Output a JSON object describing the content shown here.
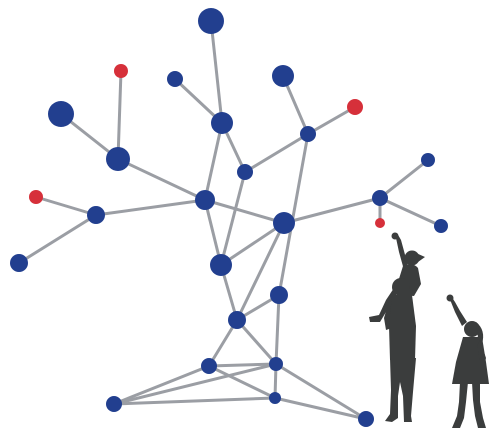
{
  "diagram": {
    "colors": {
      "edge": "#9b9ea4",
      "node_blue": "#223f8f",
      "node_red": "#d6303a",
      "silhouette": "#3b3d3d",
      "background": "#ffffff"
    },
    "node_types": [
      "blue-node",
      "red-node"
    ],
    "figures": [
      "adult-with-child-silhouette",
      "girl-reaching-silhouette"
    ],
    "text": []
  }
}
